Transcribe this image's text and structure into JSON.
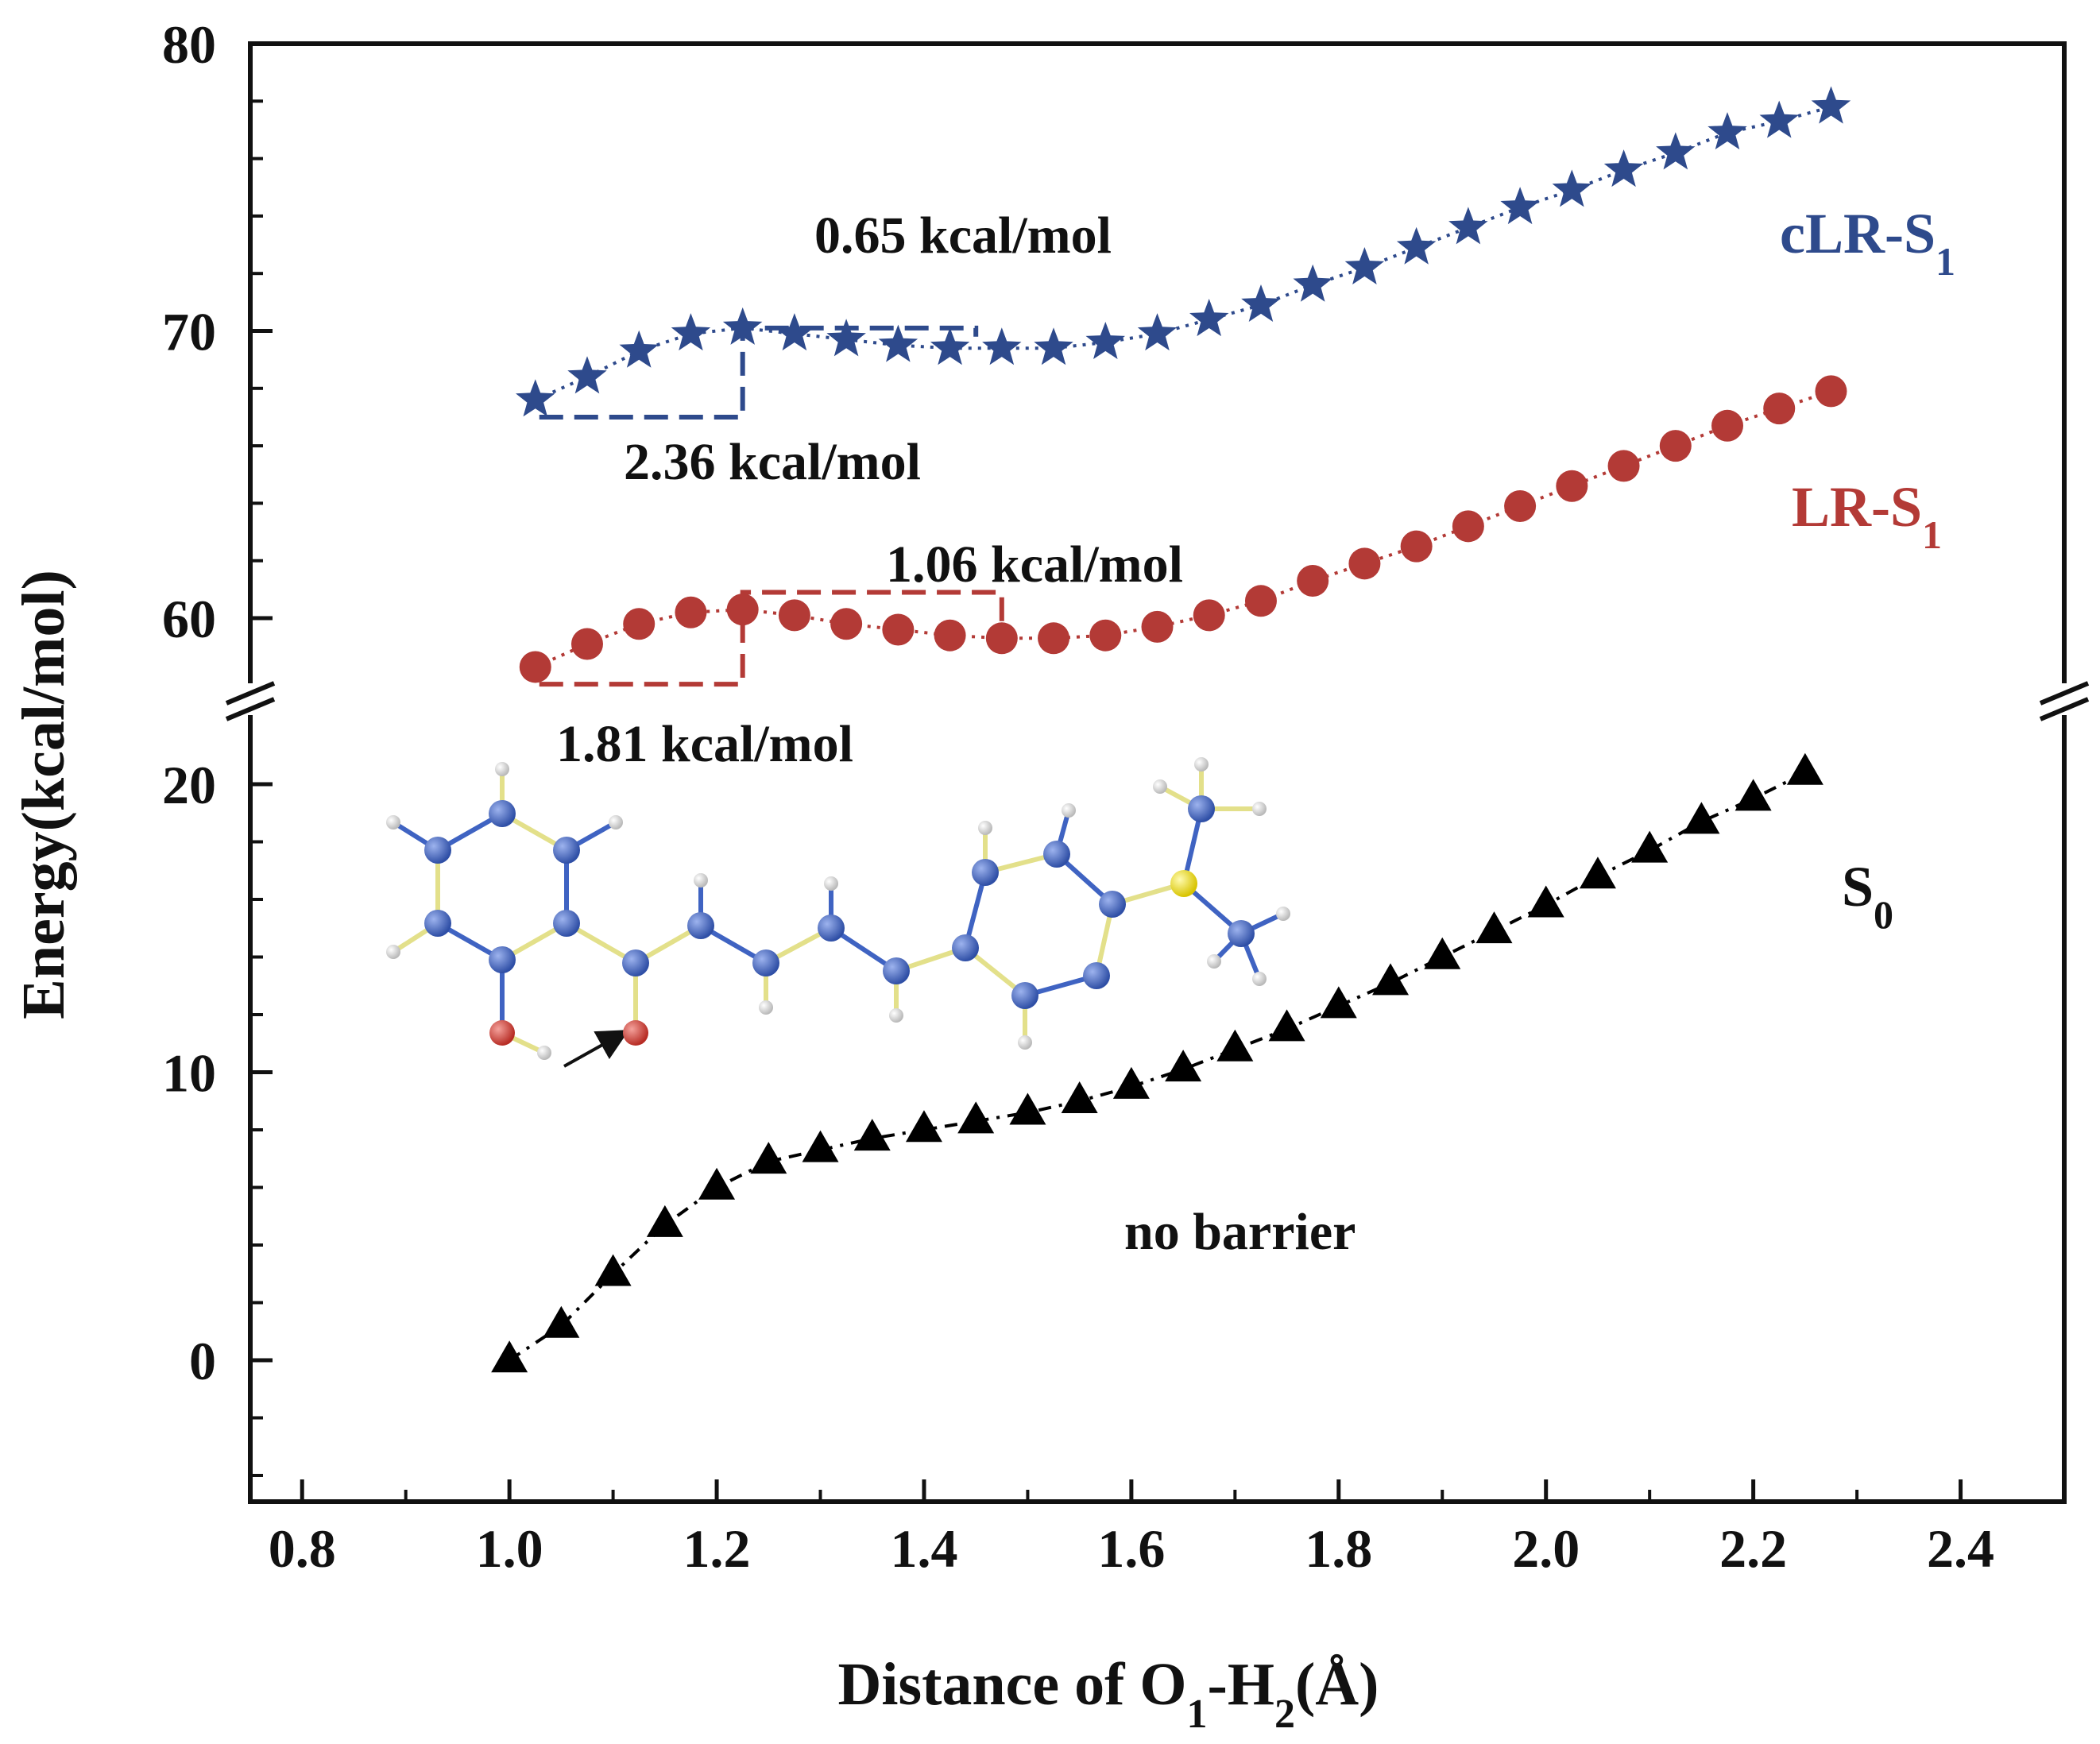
{
  "chart_data": {
    "type": "scatter",
    "title": "",
    "xlabel": {
      "main": "Distance of O",
      "sub1": "1",
      "mid": "-H",
      "sub2": "2",
      "end": "(Å)"
    },
    "ylabel": "Energy(kcal/mol)",
    "xlim": [
      0.75,
      2.5
    ],
    "xticks": [
      0.8,
      1.0,
      1.2,
      1.4,
      1.6,
      1.8,
      2.0,
      2.2,
      2.4
    ],
    "xtick_labels": [
      "0.8",
      "1.0",
      "1.2",
      "1.4",
      "1.6",
      "1.8",
      "2.0",
      "2.2",
      "2.4"
    ],
    "y_axis_break": {
      "lower": {
        "range": [
          -5,
          22
        ],
        "ticks": [
          0,
          10,
          20
        ],
        "tick_labels": [
          "0",
          "10",
          "20"
        ]
      },
      "upper": {
        "range": [
          57,
          80
        ],
        "ticks": [
          60,
          70,
          80
        ],
        "tick_labels": [
          "60",
          "70",
          "80"
        ]
      }
    },
    "series": [
      {
        "name": "cLR-S1",
        "label_main": "cLR-S",
        "label_sub": "1",
        "color": "#2e4a8c",
        "marker": "star",
        "x": [
          1.025,
          1.075,
          1.125,
          1.175,
          1.225,
          1.275,
          1.325,
          1.375,
          1.425,
          1.475,
          1.525,
          1.575,
          1.625,
          1.675,
          1.725,
          1.775,
          1.825,
          1.875,
          1.925,
          1.975,
          2.025,
          2.075,
          2.125,
          2.175,
          2.225,
          2.275
        ],
        "y": [
          67.6,
          68.4,
          69.3,
          69.9,
          70.1,
          69.9,
          69.7,
          69.5,
          69.4,
          69.4,
          69.4,
          69.6,
          69.9,
          70.4,
          70.9,
          71.6,
          72.2,
          72.9,
          73.6,
          74.3,
          74.9,
          75.6,
          76.2,
          76.9,
          77.3,
          77.8
        ]
      },
      {
        "name": "LR-S1",
        "label_main": "LR-S",
        "label_sub": "1",
        "color": "#b33a36",
        "marker": "circle",
        "x": [
          1.025,
          1.075,
          1.125,
          1.175,
          1.225,
          1.275,
          1.325,
          1.375,
          1.425,
          1.475,
          1.525,
          1.575,
          1.625,
          1.675,
          1.725,
          1.775,
          1.825,
          1.875,
          1.925,
          1.975,
          2.025,
          2.075,
          2.125,
          2.175,
          2.225,
          2.275
        ],
        "y": [
          58.3,
          59.1,
          59.8,
          60.2,
          60.3,
          60.1,
          59.8,
          59.6,
          59.4,
          59.3,
          59.3,
          59.4,
          59.7,
          60.1,
          60.6,
          61.3,
          61.9,
          62.5,
          63.2,
          63.9,
          64.6,
          65.3,
          66.0,
          66.7,
          67.3,
          67.9
        ]
      },
      {
        "name": "S0",
        "label_main": "S",
        "label_sub": "0",
        "color": "#000000",
        "marker": "triangle",
        "x": [
          1.0,
          1.05,
          1.1,
          1.15,
          1.2,
          1.25,
          1.3,
          1.35,
          1.4,
          1.45,
          1.5,
          1.55,
          1.6,
          1.65,
          1.7,
          1.75,
          1.8,
          1.85,
          1.9,
          1.95,
          2.0,
          2.05,
          2.1,
          2.15,
          2.2,
          2.25
        ],
        "y": [
          0.0,
          1.2,
          3.0,
          4.7,
          6.0,
          6.9,
          7.3,
          7.7,
          8.0,
          8.3,
          8.6,
          9.0,
          9.5,
          10.1,
          10.8,
          11.5,
          12.3,
          13.1,
          14.0,
          14.9,
          15.8,
          16.8,
          17.7,
          18.7,
          19.5,
          20.4
        ]
      }
    ],
    "annotations": [
      {
        "text": "0.65 kcal/mol",
        "series": "cLR-S1"
      },
      {
        "text": "2.36 kcal/mol",
        "series": "cLR-S1"
      },
      {
        "text": "1.06 kcal/mol",
        "series": "LR-S1"
      },
      {
        "text": "1.81 kcal/mol",
        "series": "LR-S1"
      },
      {
        "text": "no barrier",
        "series": "S0"
      }
    ],
    "barrier_brackets": [
      {
        "series": "cLR-S1",
        "x_from": 1.025,
        "x_peak": 1.225,
        "x_to": 1.45,
        "y_low": 67.0,
        "y_peak": 70.1,
        "y_mid": 69.8
      },
      {
        "series": "LR-S1",
        "x_from": 1.025,
        "x_peak": 1.225,
        "x_to": 1.475,
        "y_low": 57.7,
        "y_peak": 60.9,
        "y_mid": 59.3
      }
    ],
    "grid": false
  },
  "colors": {
    "atom_carbon": "#3f63c2",
    "atom_oxygen": "#d8453d",
    "atom_hydrogen": "#e8e8e8",
    "atom_sulfur": "#f2e21c",
    "bond": "#e3e08a"
  }
}
